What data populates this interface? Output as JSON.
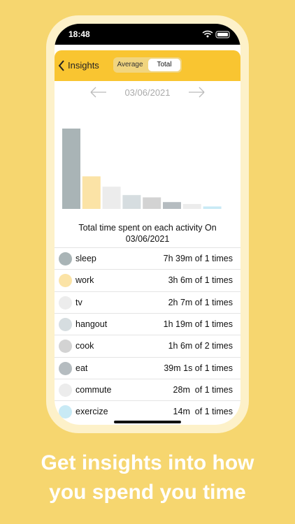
{
  "status_time": "18:48",
  "nav": {
    "back": "Insights",
    "segments": [
      "Average",
      "Total"
    ]
  },
  "date": "03/06/2021",
  "chart_data": {
    "type": "bar",
    "values": [
      459,
      186,
      127,
      79,
      66,
      39,
      28,
      14
    ],
    "colors": [
      "#a9b4b6",
      "#fbe3a6",
      "#ececec",
      "#d6dde0",
      "#d3d3d3",
      "#b5bcc0",
      "#ececec",
      "#c8eaf5"
    ],
    "ylim": [
      0,
      459
    ],
    "title": "Total time spent on each activity On 03/06/2021"
  },
  "activities": [
    {
      "name": "sleep",
      "time": "7h 39m of 1 times"
    },
    {
      "name": "work",
      "time": "3h 6m of 1 times"
    },
    {
      "name": "tv",
      "time": "2h 7m of 1 times"
    },
    {
      "name": "hangout",
      "time": "1h 19m of 1 times"
    },
    {
      "name": "cook",
      "time": "1h 6m of 2 times"
    },
    {
      "name": "eat",
      "time": "39m 1s of 1 times"
    },
    {
      "name": "commute",
      "time": "28m  of 1 times"
    },
    {
      "name": "exercize",
      "time": "14m  of 1 times"
    }
  ],
  "caption": [
    "Get insights into how",
    "you spend you time"
  ]
}
